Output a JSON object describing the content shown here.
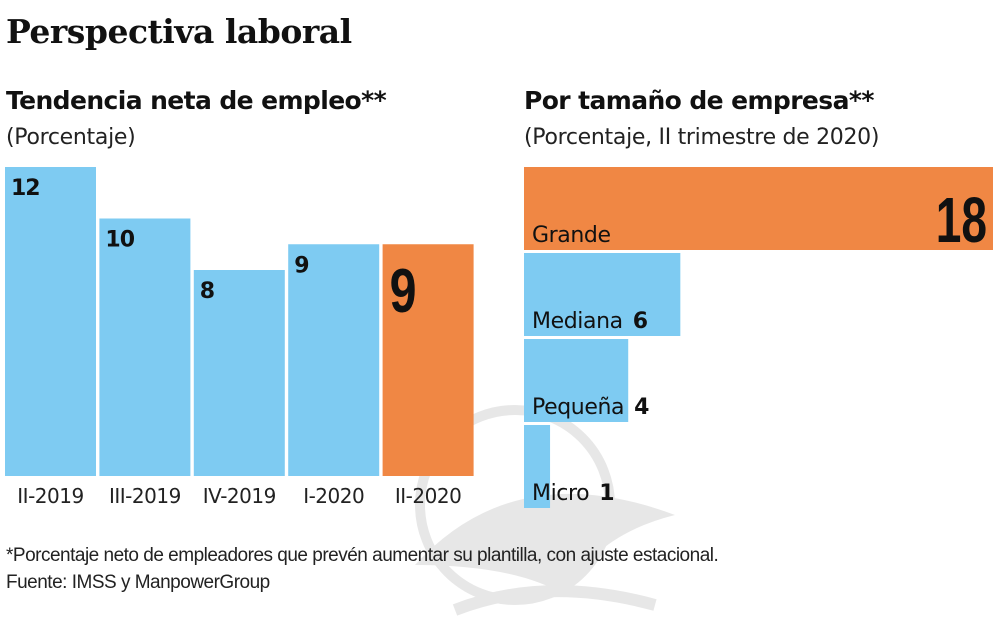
{
  "header": {
    "title": "Perspectiva laboral"
  },
  "left_panel": {
    "subtitle": "Tendencia neta de empleo**",
    "unit": "(Porcentaje)"
  },
  "right_panel": {
    "subtitle": "Por tamaño de empresa**",
    "unit": "(Porcentaje, II trimestre de 2020)"
  },
  "footer": {
    "note": "*Porcentaje neto de empleadores que prevén aumentar su plantilla, con ajuste estacional.",
    "source": "Fuente: IMSS y ManpowerGroup"
  },
  "colors": {
    "blue": "#7ecbf2",
    "orange": "#f08744",
    "text": "#111111"
  },
  "chart_data": [
    {
      "type": "bar",
      "orientation": "vertical",
      "title": "Tendencia neta de empleo**",
      "subtitle": "(Porcentaje)",
      "categories": [
        "II-2019",
        "III-2019",
        "IV-2019",
        "I-2020",
        "II-2020"
      ],
      "values": [
        12,
        10,
        8,
        9,
        9
      ],
      "highlight": [
        false,
        false,
        false,
        false,
        true
      ],
      "data_labels": [
        "12",
        "10",
        "8",
        "9",
        "9"
      ],
      "xlabel": "",
      "ylabel": "Porcentaje",
      "ylim": [
        0,
        12
      ],
      "grid": false,
      "legend": "none"
    },
    {
      "type": "bar",
      "orientation": "horizontal",
      "title": "Por tamaño de empresa**",
      "subtitle": "(Porcentaje, II trimestre de 2020)",
      "categories": [
        "Grande",
        "Mediana",
        "Pequeña",
        "Micro"
      ],
      "values": [
        18,
        6,
        4,
        1
      ],
      "highlight": [
        true,
        false,
        false,
        false
      ],
      "data_labels": [
        "18",
        "6",
        "4",
        "1"
      ],
      "xlabel": "Porcentaje",
      "ylabel": "",
      "xlim": [
        0,
        18
      ],
      "grid": false,
      "legend": "none"
    }
  ]
}
